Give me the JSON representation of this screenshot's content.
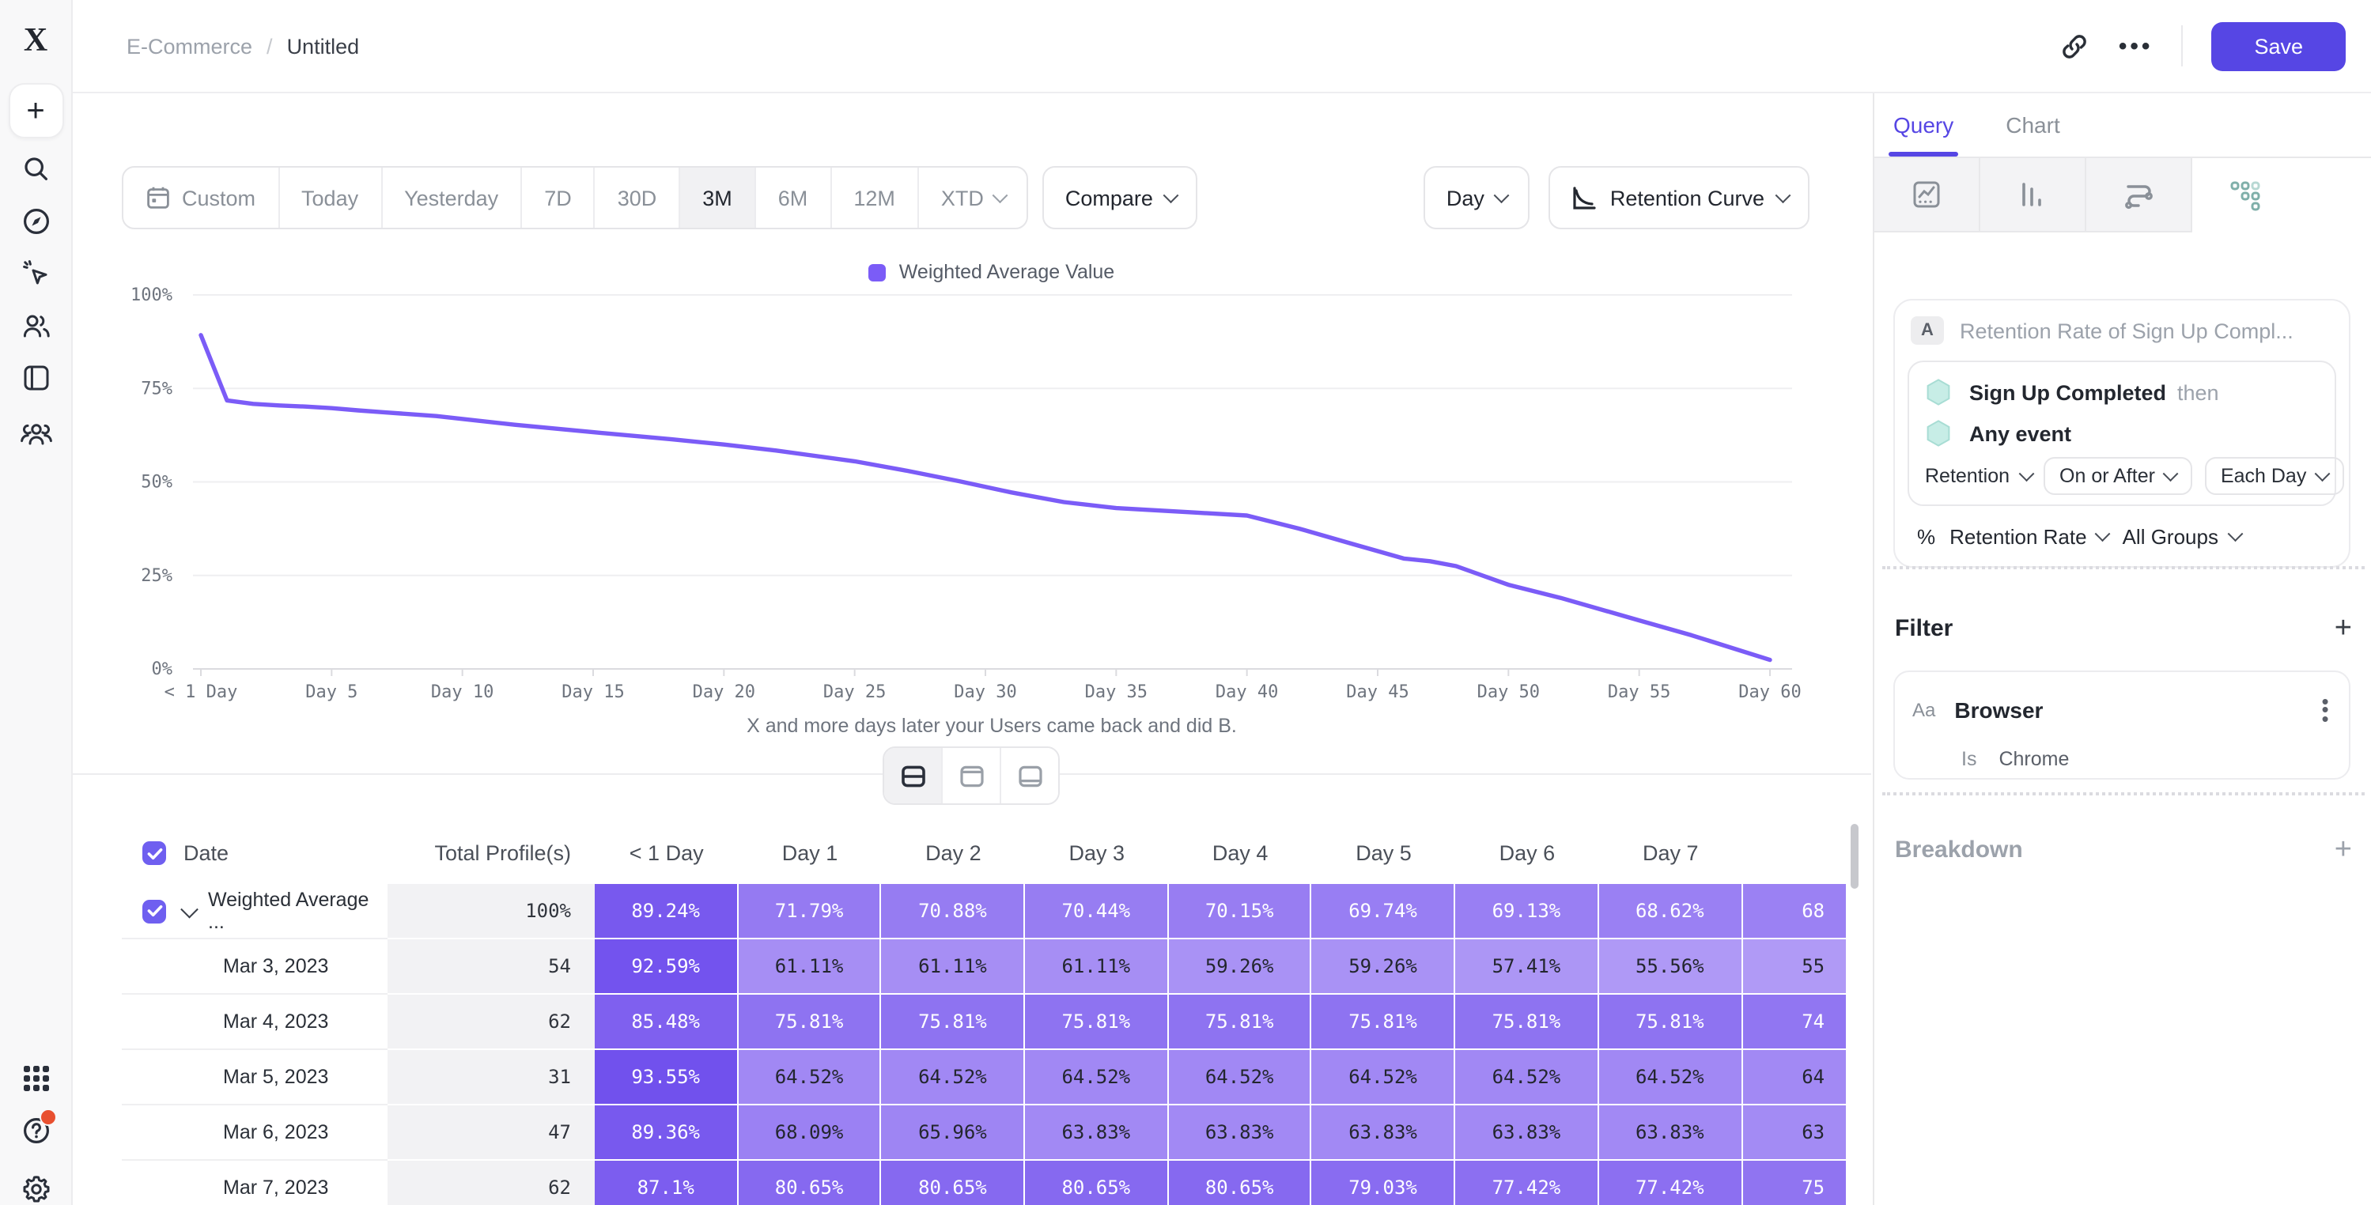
{
  "header": {
    "breadcrumb": {
      "root": "E-Commerce",
      "separator": "/",
      "current": "Untitled"
    },
    "ellipsis": "•••",
    "save_label": "Save"
  },
  "sidebar": {
    "icons": [
      "plus",
      "search",
      "compass",
      "cursor-click",
      "users",
      "notebook",
      "cohorts"
    ],
    "footer_icons": [
      "apps-grid",
      "help",
      "settings"
    ]
  },
  "toolbar": {
    "ranges": [
      {
        "label": "Custom",
        "icon": "calendar",
        "active": false,
        "chevron": false
      },
      {
        "label": "Today",
        "active": false,
        "chevron": false
      },
      {
        "label": "Yesterday",
        "active": false,
        "chevron": false
      },
      {
        "label": "7D",
        "active": false,
        "chevron": false
      },
      {
        "label": "30D",
        "active": false,
        "chevron": false
      },
      {
        "label": "3M",
        "active": true,
        "chevron": false
      },
      {
        "label": "6M",
        "active": false,
        "chevron": false
      },
      {
        "label": "12M",
        "active": false,
        "chevron": false
      },
      {
        "label": "XTD",
        "active": false,
        "chevron": true
      }
    ],
    "compare_label": "Compare",
    "granularity_label": "Day",
    "chart_type_label": "Retention Curve"
  },
  "chart_data": {
    "type": "line",
    "title": "",
    "legend": [
      "Weighted Average Value"
    ],
    "legend_position": "top-center",
    "grid": true,
    "ylabel": "",
    "xlabel": "",
    "ylim": [
      0,
      100
    ],
    "yticks": [
      {
        "v": 100,
        "label": "100%"
      },
      {
        "v": 75,
        "label": "75%"
      },
      {
        "v": 50,
        "label": "50%"
      },
      {
        "v": 25,
        "label": "25%"
      },
      {
        "v": 0,
        "label": "0%"
      }
    ],
    "xticks": [
      {
        "d": 0,
        "label": "< 1 Day"
      },
      {
        "d": 5,
        "label": "Day 5"
      },
      {
        "d": 10,
        "label": "Day 10"
      },
      {
        "d": 15,
        "label": "Day 15"
      },
      {
        "d": 20,
        "label": "Day 20"
      },
      {
        "d": 25,
        "label": "Day 25"
      },
      {
        "d": 30,
        "label": "Day 30"
      },
      {
        "d": 35,
        "label": "Day 35"
      },
      {
        "d": 40,
        "label": "Day 40"
      },
      {
        "d": 45,
        "label": "Day 45"
      },
      {
        "d": 50,
        "label": "Day 50"
      },
      {
        "d": 55,
        "label": "Day 55"
      },
      {
        "d": 60,
        "label": "Day 60"
      }
    ],
    "series": [
      {
        "name": "Weighted Average Value",
        "color": "#7B5CF7",
        "points": [
          [
            0,
            89.24
          ],
          [
            1,
            71.79
          ],
          [
            2,
            70.88
          ],
          [
            3,
            70.44
          ],
          [
            4,
            70.15
          ],
          [
            5,
            69.74
          ],
          [
            6,
            69.13
          ],
          [
            7,
            68.62
          ],
          [
            9,
            67.6
          ],
          [
            12,
            65.3
          ],
          [
            15,
            63.3
          ],
          [
            18,
            61.4
          ],
          [
            20,
            60.0
          ],
          [
            22,
            58.4
          ],
          [
            25,
            55.5
          ],
          [
            27,
            53.0
          ],
          [
            29,
            50.2
          ],
          [
            31,
            47.2
          ],
          [
            33,
            44.6
          ],
          [
            35,
            43.0
          ],
          [
            38,
            41.8
          ],
          [
            40,
            41.0
          ],
          [
            42,
            37.5
          ],
          [
            44,
            33.5
          ],
          [
            46,
            29.5
          ],
          [
            47,
            28.8
          ],
          [
            48,
            27.5
          ],
          [
            50,
            22.5
          ],
          [
            52,
            19.0
          ],
          [
            55,
            13.0
          ],
          [
            57,
            9.0
          ],
          [
            60,
            2.4
          ]
        ]
      }
    ],
    "caption": "X and more days later your Users came back and did B."
  },
  "layout_toggle": {
    "options": [
      "split-view",
      "chart-only-view",
      "table-only-view"
    ],
    "active": "split-view"
  },
  "table": {
    "columns": [
      "Date",
      "Total Profile(s)",
      "< 1 Day",
      "Day 1",
      "Day 2",
      "Day 3",
      "Day 4",
      "Day 5",
      "Day 6",
      "Day 7",
      ""
    ],
    "rows": [
      {
        "label": "Weighted Average ...",
        "total": "100%",
        "checked": true,
        "expandable": true,
        "white_all": true,
        "cells": [
          "89.24%",
          "71.79%",
          "70.88%",
          "70.44%",
          "70.15%",
          "69.74%",
          "69.13%",
          "68.62%",
          "68"
        ]
      },
      {
        "label": "Mar 3, 2023",
        "total": "54",
        "checked": false,
        "expandable": false,
        "white_all": false,
        "cells": [
          "92.59%",
          "61.11%",
          "61.11%",
          "61.11%",
          "59.26%",
          "59.26%",
          "57.41%",
          "55.56%",
          "55"
        ]
      },
      {
        "label": "Mar 4, 2023",
        "total": "62",
        "checked": false,
        "expandable": false,
        "white_all": false,
        "cells": [
          "85.48%",
          "75.81%",
          "75.81%",
          "75.81%",
          "75.81%",
          "75.81%",
          "75.81%",
          "75.81%",
          "74"
        ]
      },
      {
        "label": "Mar 5, 2023",
        "total": "31",
        "checked": false,
        "expandable": false,
        "white_all": false,
        "cells": [
          "93.55%",
          "64.52%",
          "64.52%",
          "64.52%",
          "64.52%",
          "64.52%",
          "64.52%",
          "64.52%",
          "64"
        ]
      },
      {
        "label": "Mar 6, 2023",
        "total": "47",
        "checked": false,
        "expandable": false,
        "white_all": false,
        "cells": [
          "89.36%",
          "68.09%",
          "65.96%",
          "63.83%",
          "63.83%",
          "63.83%",
          "63.83%",
          "63.83%",
          "63"
        ]
      },
      {
        "label": "Mar 7, 2023",
        "total": "62",
        "checked": false,
        "expandable": false,
        "white_all": false,
        "cells": [
          "87.1%",
          "80.65%",
          "80.65%",
          "80.65%",
          "80.65%",
          "79.03%",
          "77.42%",
          "77.42%",
          "75"
        ]
      }
    ]
  },
  "panel": {
    "tabs": {
      "query": "Query",
      "chart": "Chart",
      "active": "Query"
    },
    "chart_type_tabs": [
      "insights",
      "funnels",
      "flows",
      "retention"
    ],
    "active_chart_type": "retention",
    "query": {
      "badge": "A",
      "title": "Retention Rate of Sign Up Compl...",
      "steps": [
        {
          "name": "Sign Up Completed",
          "suffix": "then"
        },
        {
          "name": "Any event",
          "suffix": ""
        }
      ],
      "retention_dropdown": "Retention",
      "window_dropdown": "On or After",
      "interval_dropdown": "Each Day",
      "metric_symbol": "%",
      "metric_name": "Retention Rate",
      "metric_group": "All Groups"
    },
    "filter": {
      "heading": "Filter",
      "property_type": "Aa",
      "property": "Browser",
      "operator": "Is",
      "value": "Chrome"
    },
    "breakdown": {
      "heading": "Breakdown"
    }
  },
  "colors": {
    "accent": "#5646E4",
    "line": "#7B5CF7",
    "checkbox": "#6F5FF0",
    "cell_light": "#B29CF6",
    "cell_dark": "#6F4EED",
    "teal_icon": "#C7EDE6",
    "notification": "#E85030"
  }
}
